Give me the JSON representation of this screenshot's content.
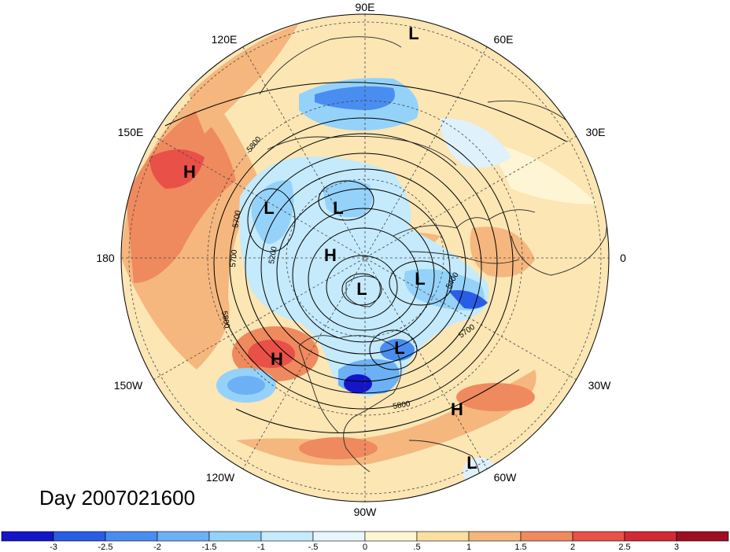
{
  "title": "Day 2007021600",
  "longitude_labels": [
    {
      "text": "90E",
      "lon": 90
    },
    {
      "text": "60E",
      "lon": 60
    },
    {
      "text": "30E",
      "lon": 30
    },
    {
      "text": "0",
      "lon": 0
    },
    {
      "text": "30W",
      "lon": -30
    },
    {
      "text": "60W",
      "lon": -60
    },
    {
      "text": "90W",
      "lon": -90
    },
    {
      "text": "120W",
      "lon": -120
    },
    {
      "text": "150W",
      "lon": -150
    },
    {
      "text": "180",
      "lon": 180
    },
    {
      "text": "150E",
      "lon": 150
    },
    {
      "text": "120E",
      "lon": 120
    }
  ],
  "pressure_centers": [
    {
      "type": "L",
      "label": "L"
    },
    {
      "type": "H",
      "label": "H"
    },
    {
      "type": "L",
      "label": "L"
    },
    {
      "type": "L",
      "label": "L"
    },
    {
      "type": "H",
      "label": "H"
    },
    {
      "type": "L",
      "label": "L"
    },
    {
      "type": "L",
      "label": "L"
    },
    {
      "type": "H",
      "label": "H"
    },
    {
      "type": "L",
      "label": "L"
    },
    {
      "type": "H",
      "label": "H"
    },
    {
      "type": "L",
      "label": "L"
    }
  ],
  "contour_labels": [
    "5800",
    "5700",
    "5700",
    "5200",
    "5800",
    "5400",
    "5700",
    "5800"
  ],
  "colorbar": {
    "ticks": [
      "-3",
      "-2.5",
      "-2",
      "-1.5",
      "-1",
      "-.5",
      "0",
      ".5",
      "1",
      "1.5",
      "2",
      "2.5",
      "3"
    ],
    "colors": [
      "#1515c8",
      "#2a5de6",
      "#4a8df0",
      "#6cb0f5",
      "#94d2fa",
      "#c4eafc",
      "#e8f6fd",
      "#fdf5d3",
      "#f9dfa0",
      "#f5b77e",
      "#ef8a5e",
      "#e85048",
      "#d12a35",
      "#9e0e22"
    ]
  },
  "colors": {
    "warm": "#f5b77e",
    "hot": "#ef8a5e",
    "cold": "#6cb0f5",
    "neutral_warm": "#fdf0c8",
    "neutral_cold": "#dff1fb"
  }
}
